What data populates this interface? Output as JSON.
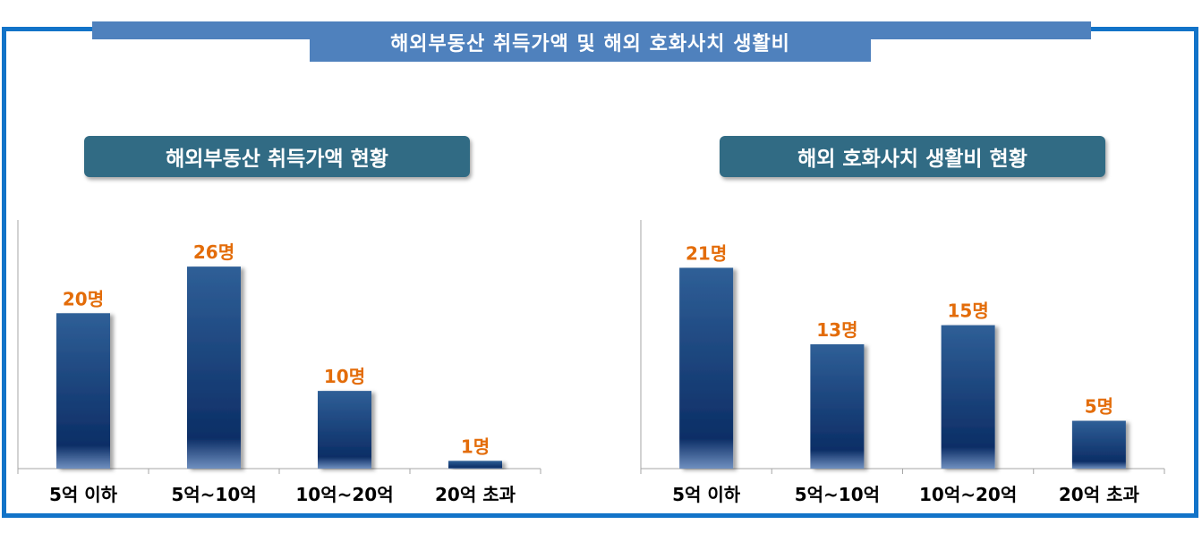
{
  "header": {
    "title": "해외부동산 취득가액 및 해외 호화사치 생활비"
  },
  "colors": {
    "frame": "#1273c8",
    "ribbon": "#4f81bd",
    "title_box": "#316b84",
    "bar_top": "#2e5d95",
    "bar_bottom": "#0d2f66",
    "value_label": "#e36c09"
  },
  "chart_data": [
    {
      "type": "bar",
      "title": "해외부동산 취득가액 현황",
      "categories": [
        "5억 이하",
        "5억~10억",
        "10억~20억",
        "20억 초과"
      ],
      "values": [
        20,
        26,
        10,
        1
      ],
      "value_labels": [
        "20명",
        "26명",
        "10명",
        "1명"
      ],
      "ylim": [
        0,
        32
      ],
      "grid": false,
      "legend": "none"
    },
    {
      "type": "bar",
      "title": "해외 호화사치 생활비 현황",
      "categories": [
        "5억 이하",
        "5억~10억",
        "10억~20억",
        "20억 초과"
      ],
      "values": [
        21,
        13,
        15,
        5
      ],
      "value_labels": [
        "21명",
        "13명",
        "15명",
        "5명"
      ],
      "ylim": [
        0,
        26
      ],
      "grid": false,
      "legend": "none"
    }
  ]
}
